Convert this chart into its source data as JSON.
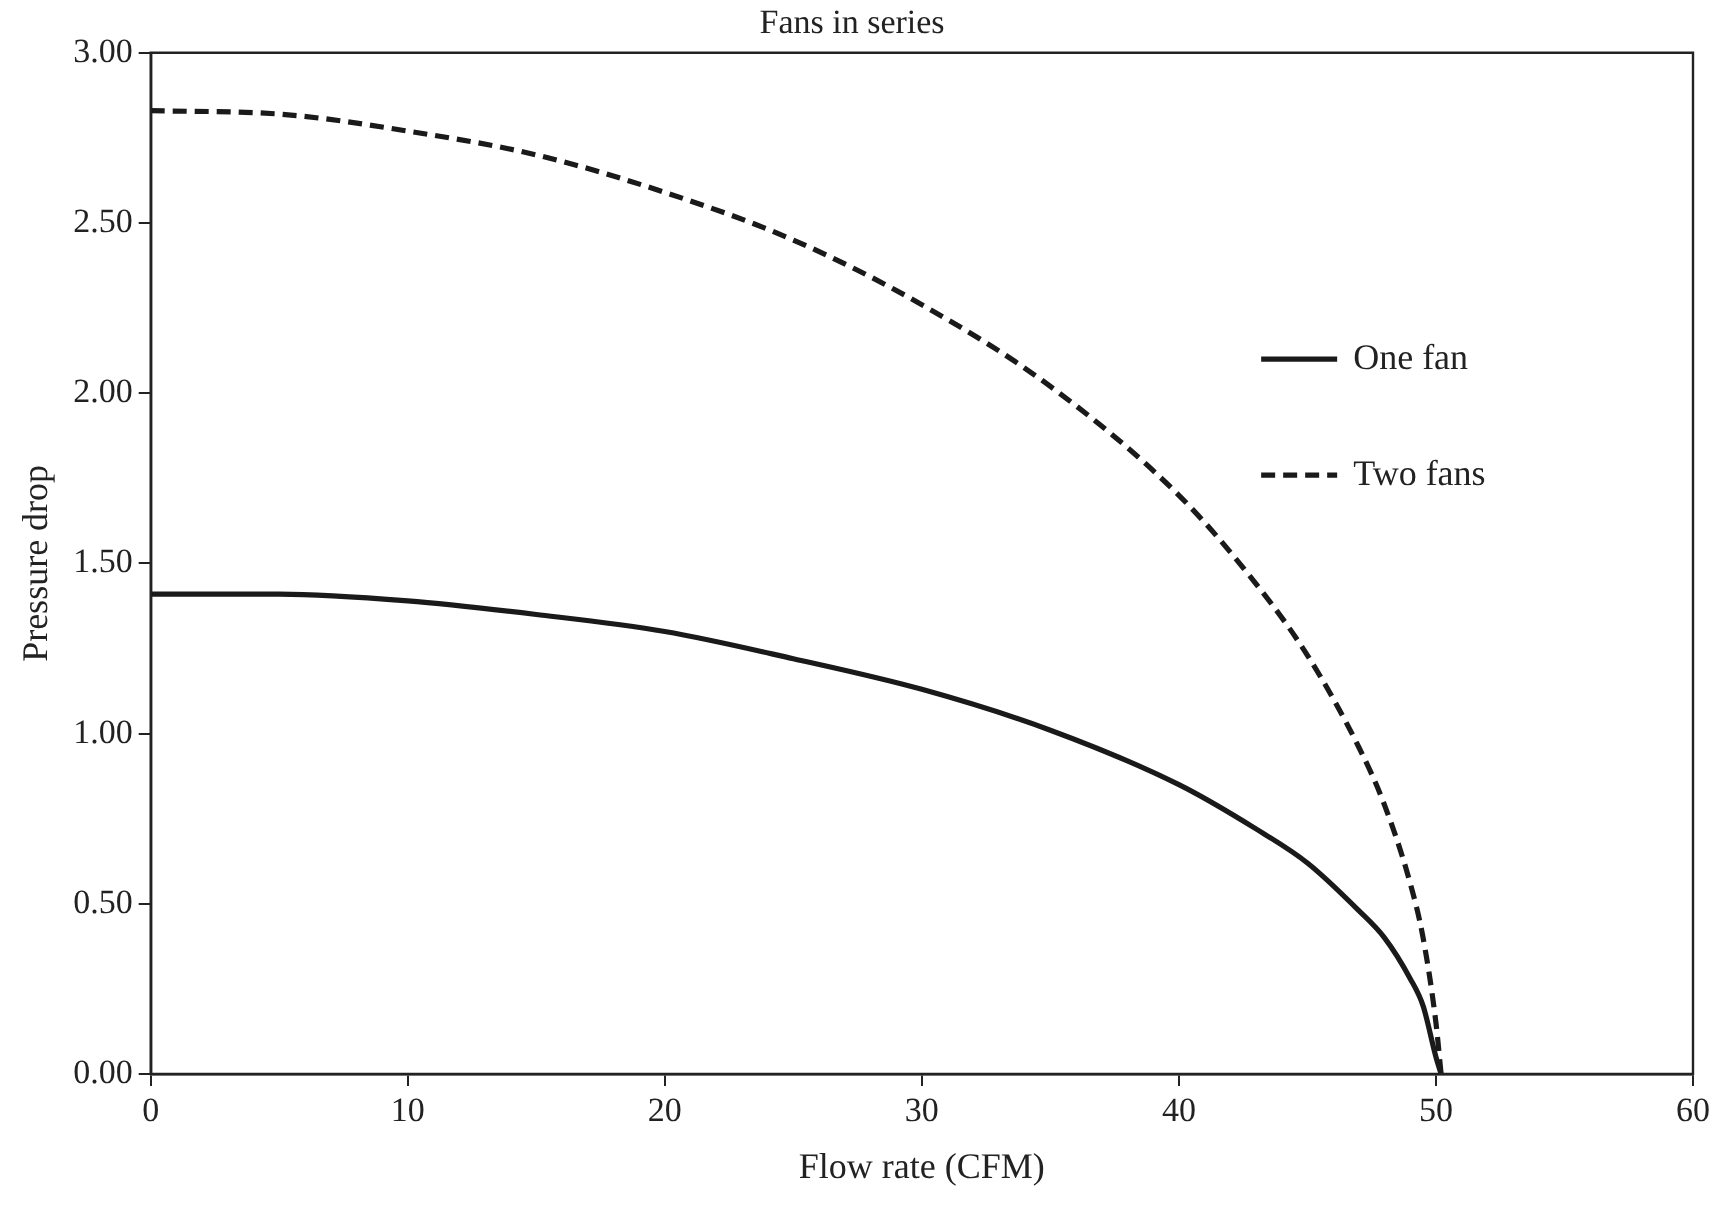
{
  "chart_data": {
    "type": "line",
    "title": "Fans in series",
    "xlabel": "Flow rate (CFM)",
    "ylabel": "Pressure drop",
    "xlim": [
      0,
      60
    ],
    "xticks": [
      0,
      10,
      20,
      30,
      40,
      50,
      60
    ],
    "ylim": [
      0,
      3
    ],
    "yticks": [
      {
        "value": 0,
        "label": "0.00"
      },
      {
        "value": 0.5,
        "label": "0.50"
      },
      {
        "value": 1,
        "label": "1.00"
      },
      {
        "value": 1.5,
        "label": "1.50"
      },
      {
        "value": 2,
        "label": "2.00"
      },
      {
        "value": 2.5,
        "label": "2.50"
      },
      {
        "value": 3,
        "label": "3.00"
      }
    ],
    "grid": false,
    "legend": "right",
    "marker": "none",
    "series": [
      {
        "name": "One fan",
        "color": "#1a1a1a",
        "line_style": "solid",
        "x": [
          0,
          5,
          10,
          15,
          20,
          25,
          30,
          35,
          40,
          43,
          45,
          47,
          48,
          49,
          49.5,
          50,
          50.2
        ],
        "values": [
          1.41,
          1.41,
          1.39,
          1.35,
          1.3,
          1.22,
          1.13,
          1.01,
          0.85,
          0.72,
          0.62,
          0.48,
          0.4,
          0.28,
          0.2,
          0.05,
          0
        ]
      },
      {
        "name": "Two fans",
        "color": "#1a1a1a",
        "line_style": "dashed",
        "x": [
          0,
          5,
          10,
          15,
          20,
          25,
          30,
          35,
          40,
          43,
          45,
          47,
          48,
          49,
          49.5,
          50,
          50.2
        ],
        "values": [
          2.83,
          2.82,
          2.77,
          2.7,
          2.59,
          2.45,
          2.26,
          2.02,
          1.7,
          1.44,
          1.23,
          0.96,
          0.79,
          0.56,
          0.4,
          0.15,
          0
        ]
      }
    ]
  }
}
